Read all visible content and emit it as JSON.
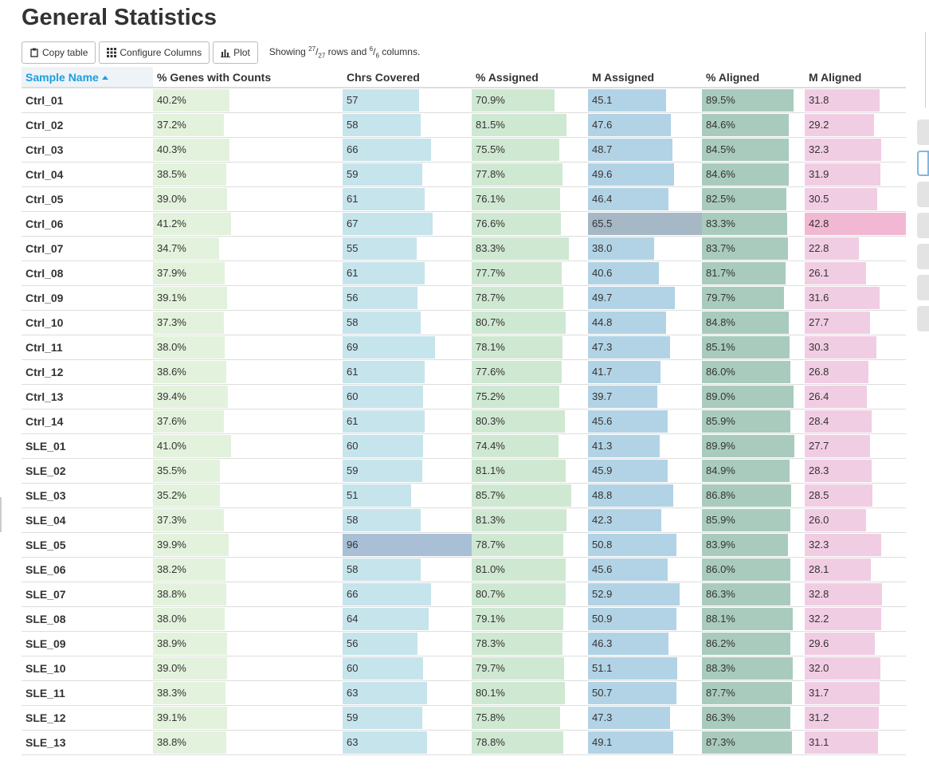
{
  "title": "General Statistics",
  "toolbar": {
    "copy_label": "Copy table",
    "configure_label": "Configure Columns",
    "plot_label": "Plot",
    "showing_prefix": "Showing ",
    "rows_shown": "27",
    "rows_total": "27",
    "rows_word": " rows and ",
    "cols_shown": "6",
    "cols_total": "6",
    "cols_word": " columns."
  },
  "columns": [
    {
      "key": "sample",
      "label": "Sample Name",
      "sorted": true
    },
    {
      "key": "genes",
      "label": "% Genes with Counts",
      "max": 100,
      "color": "#e3f2dc"
    },
    {
      "key": "chrs",
      "label": "Chrs Covered",
      "max": 96,
      "color": "#c6e4ec"
    },
    {
      "key": "passigned",
      "label": "% Assigned",
      "max": 100,
      "color": "#cfe8d2"
    },
    {
      "key": "massigned",
      "label": "M Assigned",
      "max": 65.5,
      "color": "#b2d3e5"
    },
    {
      "key": "paligned",
      "label": "% Aligned",
      "max": 100,
      "color": "#a9cbbd"
    },
    {
      "key": "maligned",
      "label": "M Aligned",
      "max": 42.8,
      "color": "#f1cde3"
    }
  ],
  "rows": [
    {
      "sample": "Ctrl_01",
      "genes": "40.2%",
      "chrs": "57",
      "passigned": "70.9%",
      "massigned": "45.1",
      "paligned": "89.5%",
      "maligned": "31.8"
    },
    {
      "sample": "Ctrl_02",
      "genes": "37.2%",
      "chrs": "58",
      "passigned": "81.5%",
      "massigned": "47.6",
      "paligned": "84.6%",
      "maligned": "29.2"
    },
    {
      "sample": "Ctrl_03",
      "genes": "40.3%",
      "chrs": "66",
      "passigned": "75.5%",
      "massigned": "48.7",
      "paligned": "84.5%",
      "maligned": "32.3"
    },
    {
      "sample": "Ctrl_04",
      "genes": "38.5%",
      "chrs": "59",
      "passigned": "77.8%",
      "massigned": "49.6",
      "paligned": "84.6%",
      "maligned": "31.9"
    },
    {
      "sample": "Ctrl_05",
      "genes": "39.0%",
      "chrs": "61",
      "passigned": "76.1%",
      "massigned": "46.4",
      "paligned": "82.5%",
      "maligned": "30.5"
    },
    {
      "sample": "Ctrl_06",
      "genes": "41.2%",
      "chrs": "67",
      "passigned": "76.6%",
      "massigned": "65.5",
      "paligned": "83.3%",
      "maligned": "42.8"
    },
    {
      "sample": "Ctrl_07",
      "genes": "34.7%",
      "chrs": "55",
      "passigned": "83.3%",
      "massigned": "38.0",
      "paligned": "83.7%",
      "maligned": "22.8"
    },
    {
      "sample": "Ctrl_08",
      "genes": "37.9%",
      "chrs": "61",
      "passigned": "77.7%",
      "massigned": "40.6",
      "paligned": "81.7%",
      "maligned": "26.1"
    },
    {
      "sample": "Ctrl_09",
      "genes": "39.1%",
      "chrs": "56",
      "passigned": "78.7%",
      "massigned": "49.7",
      "paligned": "79.7%",
      "maligned": "31.6"
    },
    {
      "sample": "Ctrl_10",
      "genes": "37.3%",
      "chrs": "58",
      "passigned": "80.7%",
      "massigned": "44.8",
      "paligned": "84.8%",
      "maligned": "27.7"
    },
    {
      "sample": "Ctrl_11",
      "genes": "38.0%",
      "chrs": "69",
      "passigned": "78.1%",
      "massigned": "47.3",
      "paligned": "85.1%",
      "maligned": "30.3"
    },
    {
      "sample": "Ctrl_12",
      "genes": "38.6%",
      "chrs": "61",
      "passigned": "77.6%",
      "massigned": "41.7",
      "paligned": "86.0%",
      "maligned": "26.8"
    },
    {
      "sample": "Ctrl_13",
      "genes": "39.4%",
      "chrs": "60",
      "passigned": "75.2%",
      "massigned": "39.7",
      "paligned": "89.0%",
      "maligned": "26.4"
    },
    {
      "sample": "Ctrl_14",
      "genes": "37.6%",
      "chrs": "61",
      "passigned": "80.3%",
      "massigned": "45.6",
      "paligned": "85.9%",
      "maligned": "28.4"
    },
    {
      "sample": "SLE_01",
      "genes": "41.0%",
      "chrs": "60",
      "passigned": "74.4%",
      "massigned": "41.3",
      "paligned": "89.9%",
      "maligned": "27.7"
    },
    {
      "sample": "SLE_02",
      "genes": "35.5%",
      "chrs": "59",
      "passigned": "81.1%",
      "massigned": "45.9",
      "paligned": "84.9%",
      "maligned": "28.3"
    },
    {
      "sample": "SLE_03",
      "genes": "35.2%",
      "chrs": "51",
      "passigned": "85.7%",
      "massigned": "48.8",
      "paligned": "86.8%",
      "maligned": "28.5"
    },
    {
      "sample": "SLE_04",
      "genes": "37.3%",
      "chrs": "58",
      "passigned": "81.3%",
      "massigned": "42.3",
      "paligned": "85.9%",
      "maligned": "26.0"
    },
    {
      "sample": "SLE_05",
      "genes": "39.9%",
      "chrs": "96",
      "passigned": "78.7%",
      "massigned": "50.8",
      "paligned": "83.9%",
      "maligned": "32.3"
    },
    {
      "sample": "SLE_06",
      "genes": "38.2%",
      "chrs": "58",
      "passigned": "81.0%",
      "massigned": "45.6",
      "paligned": "86.0%",
      "maligned": "28.1"
    },
    {
      "sample": "SLE_07",
      "genes": "38.8%",
      "chrs": "66",
      "passigned": "80.7%",
      "massigned": "52.9",
      "paligned": "86.3%",
      "maligned": "32.8"
    },
    {
      "sample": "SLE_08",
      "genes": "38.0%",
      "chrs": "64",
      "passigned": "79.1%",
      "massigned": "50.9",
      "paligned": "88.1%",
      "maligned": "32.2"
    },
    {
      "sample": "SLE_09",
      "genes": "38.9%",
      "chrs": "56",
      "passigned": "78.3%",
      "massigned": "46.3",
      "paligned": "86.2%",
      "maligned": "29.6"
    },
    {
      "sample": "SLE_10",
      "genes": "39.0%",
      "chrs": "60",
      "passigned": "79.7%",
      "massigned": "51.1",
      "paligned": "88.3%",
      "maligned": "32.0"
    },
    {
      "sample": "SLE_11",
      "genes": "38.3%",
      "chrs": "63",
      "passigned": "80.1%",
      "massigned": "50.7",
      "paligned": "87.7%",
      "maligned": "31.7"
    },
    {
      "sample": "SLE_12",
      "genes": "39.1%",
      "chrs": "59",
      "passigned": "75.8%",
      "massigned": "47.3",
      "paligned": "86.3%",
      "maligned": "31.2"
    },
    {
      "sample": "SLE_13",
      "genes": "38.8%",
      "chrs": "63",
      "passigned": "78.8%",
      "massigned": "49.1",
      "paligned": "87.3%",
      "maligned": "31.1"
    }
  ],
  "max_colors": {
    "chrs": "#a8bfd6",
    "massigned": "#a6b8c6",
    "maligned": "#f2b8d3"
  },
  "sidebar_tools": [
    {
      "icon": "arrow-icon",
      "active": false
    },
    {
      "icon": "highlight-icon",
      "active": true
    },
    {
      "icon": "eye-icon",
      "active": false
    },
    {
      "icon": "export-icon",
      "active": false
    },
    {
      "icon": "k-icon",
      "active": false
    },
    {
      "icon": "gear-icon",
      "active": false
    },
    {
      "icon": "help-icon",
      "active": false
    }
  ]
}
